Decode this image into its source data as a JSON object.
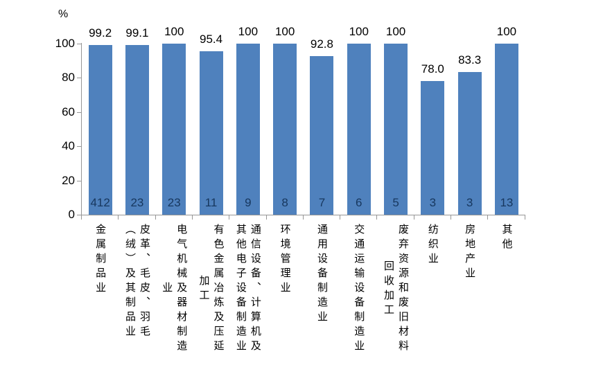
{
  "chart_data": {
    "type": "bar",
    "unit_label": "%",
    "ylim": [
      0,
      100
    ],
    "yticks": [
      0,
      20,
      40,
      60,
      80,
      100
    ],
    "grid": false,
    "legend": "none",
    "bar_color": "#4F81BD",
    "count_label_color": "#17375E",
    "axis_color": "#969696",
    "categories": [
      "金属制品业",
      "皮革、毛皮、羽毛（绒）及其制品业",
      "电气机械及器材制造业",
      "有色金属冶炼及压延加工",
      "通信设备、计算机及其他电子设备制造业",
      "环境管理业",
      "通用设备制造业",
      "交通运输设备制造业",
      "废弃资源和废旧材料回收加工",
      "纺织业",
      "房地产业",
      "其他"
    ],
    "category_label_lines": [
      [
        "金属制品业"
      ],
      [
        "皮革、毛皮、羽毛",
        "（绒）及其制品业"
      ],
      [
        "电气机械及器材制造",
        "业"
      ],
      [
        "有色金属冶炼及压延",
        "加工"
      ],
      [
        "通信设备、计算机及",
        "其他电子设备制造业"
      ],
      [
        "环境管理业"
      ],
      [
        "通用设备制造业"
      ],
      [
        "交通运输设备制造业"
      ],
      [
        "废弃资源和废旧材料",
        "回收加工"
      ],
      [
        "纺织业"
      ],
      [
        "房地产业"
      ],
      [
        "其他"
      ]
    ],
    "values": [
      99.2,
      99.1,
      100,
      95.4,
      100,
      100,
      92.8,
      100,
      100,
      78.0,
      83.3,
      100
    ],
    "value_labels": [
      "99.2",
      "99.1",
      "100",
      "95.4",
      "100",
      "100",
      "92.8",
      "100",
      "100",
      "78.0",
      "83.3",
      "100"
    ],
    "counts": [
      412,
      23,
      23,
      11,
      9,
      8,
      7,
      6,
      5,
      3,
      3,
      13
    ]
  }
}
